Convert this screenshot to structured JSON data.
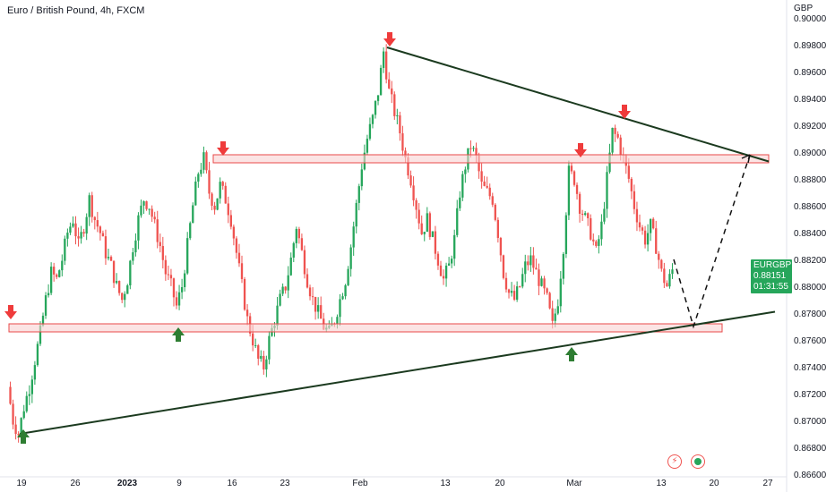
{
  "header": {
    "symbol_title": "Euro / British Pound, 4h, FXCM",
    "currency": "GBP"
  },
  "price_tag": {
    "symbol": "EURGBP",
    "price": "0.88151",
    "countdown": "01:31:55",
    "color": "#26a65b"
  },
  "icons": {
    "flash": "flash-icon",
    "record": "record-icon"
  },
  "chart_data": {
    "type": "candlestick",
    "symbol": "EURGBP",
    "timeframe": "4h",
    "ylim": [
      0.866,
      0.9
    ],
    "y_ticks": [
      "0.90000",
      "0.89800",
      "0.89600",
      "0.89400",
      "0.89200",
      "0.89000",
      "0.88800",
      "0.88600",
      "0.88400",
      "0.88200",
      "0.88000",
      "0.87800",
      "0.87600",
      "0.87400",
      "0.87200",
      "0.87000",
      "0.86800",
      "0.86600"
    ],
    "x_ticks": [
      {
        "label": "19",
        "bold": false
      },
      {
        "label": "26",
        "bold": false
      },
      {
        "label": "2023",
        "bold": true
      },
      {
        "label": "9",
        "bold": false
      },
      {
        "label": "16",
        "bold": false
      },
      {
        "label": "23",
        "bold": false
      },
      {
        "label": "Feb",
        "bold": false
      },
      {
        "label": "13",
        "bold": false
      },
      {
        "label": "20",
        "bold": false
      },
      {
        "label": "Mar",
        "bold": false
      },
      {
        "label": "13",
        "bold": false
      },
      {
        "label": "20",
        "bold": false
      },
      {
        "label": "27",
        "bold": false
      }
    ],
    "price_path": [
      [
        0,
        0.8725
      ],
      [
        2,
        0.87
      ],
      [
        4,
        0.869
      ],
      [
        6,
        0.871
      ],
      [
        8,
        0.8725
      ],
      [
        10,
        0.8745
      ],
      [
        12,
        0.8765
      ],
      [
        14,
        0.879
      ],
      [
        16,
        0.881
      ],
      [
        18,
        0.8805
      ],
      [
        20,
        0.882
      ],
      [
        22,
        0.884
      ],
      [
        24,
        0.885
      ],
      [
        26,
        0.883
      ],
      [
        28,
        0.8845
      ],
      [
        30,
        0.8865
      ],
      [
        32,
        0.885
      ],
      [
        34,
        0.884
      ],
      [
        36,
        0.8825
      ],
      [
        38,
        0.8815
      ],
      [
        40,
        0.88
      ],
      [
        42,
        0.879
      ],
      [
        44,
        0.8805
      ],
      [
        46,
        0.883
      ],
      [
        48,
        0.885
      ],
      [
        50,
        0.8865
      ],
      [
        52,
        0.886
      ],
      [
        54,
        0.8845
      ],
      [
        56,
        0.883
      ],
      [
        58,
        0.881
      ],
      [
        60,
        0.88
      ],
      [
        62,
        0.8785
      ],
      [
        64,
        0.88
      ],
      [
        66,
        0.883
      ],
      [
        68,
        0.886
      ],
      [
        70,
        0.8885
      ],
      [
        72,
        0.8895
      ],
      [
        74,
        0.887
      ],
      [
        76,
        0.886
      ],
      [
        78,
        0.8875
      ],
      [
        80,
        0.8865
      ],
      [
        82,
        0.885
      ],
      [
        84,
        0.8825
      ],
      [
        86,
        0.88
      ],
      [
        88,
        0.8775
      ],
      [
        90,
        0.876
      ],
      [
        92,
        0.8745
      ],
      [
        94,
        0.874
      ],
      [
        96,
        0.876
      ],
      [
        98,
        0.8775
      ],
      [
        100,
        0.879
      ],
      [
        102,
        0.88
      ],
      [
        104,
        0.882
      ],
      [
        106,
        0.8845
      ],
      [
        108,
        0.8825
      ],
      [
        110,
        0.8805
      ],
      [
        112,
        0.879
      ],
      [
        114,
        0.878
      ],
      [
        116,
        0.877
      ],
      [
        118,
        0.8765
      ],
      [
        120,
        0.8775
      ],
      [
        122,
        0.879
      ],
      [
        124,
        0.8805
      ],
      [
        126,
        0.883
      ],
      [
        128,
        0.886
      ],
      [
        130,
        0.889
      ],
      [
        132,
        0.891
      ],
      [
        134,
        0.8925
      ],
      [
        136,
        0.8945
      ],
      [
        138,
        0.8975
      ],
      [
        140,
        0.8945
      ],
      [
        142,
        0.893
      ],
      [
        144,
        0.8915
      ],
      [
        146,
        0.8895
      ],
      [
        148,
        0.888
      ],
      [
        150,
        0.886
      ],
      [
        152,
        0.884
      ],
      [
        154,
        0.885
      ],
      [
        156,
        0.8835
      ],
      [
        158,
        0.882
      ],
      [
        160,
        0.8805
      ],
      [
        162,
        0.8815
      ],
      [
        164,
        0.8835
      ],
      [
        166,
        0.887
      ],
      [
        168,
        0.889
      ],
      [
        170,
        0.8905
      ],
      [
        172,
        0.8895
      ],
      [
        174,
        0.8875
      ],
      [
        176,
        0.887
      ],
      [
        178,
        0.8865
      ],
      [
        180,
        0.884
      ],
      [
        182,
        0.881
      ],
      [
        184,
        0.8795
      ],
      [
        186,
        0.879
      ],
      [
        188,
        0.88
      ],
      [
        190,
        0.8815
      ],
      [
        192,
        0.882
      ],
      [
        194,
        0.881
      ],
      [
        196,
        0.88
      ],
      [
        198,
        0.879
      ],
      [
        200,
        0.877
      ],
      [
        202,
        0.879
      ],
      [
        204,
        0.883
      ],
      [
        206,
        0.8885
      ],
      [
        208,
        0.888
      ],
      [
        210,
        0.886
      ],
      [
        212,
        0.885
      ],
      [
        214,
        0.884
      ],
      [
        216,
        0.8825
      ],
      [
        218,
        0.8845
      ],
      [
        220,
        0.888
      ],
      [
        222,
        0.8915
      ],
      [
        224,
        0.891
      ],
      [
        226,
        0.8895
      ],
      [
        228,
        0.888
      ],
      [
        230,
        0.886
      ],
      [
        232,
        0.8845
      ],
      [
        234,
        0.8835
      ],
      [
        236,
        0.8845
      ],
      [
        238,
        0.883
      ],
      [
        240,
        0.881
      ],
      [
        242,
        0.88
      ],
      [
        244,
        0.8812
      ]
    ],
    "annotations": {
      "resistance_zone": [
        0.8898,
        0.8892
      ],
      "support_zone": [
        0.8772,
        0.8766
      ],
      "upper_trendline": [
        [
          0.8978,
          "Feb 5"
        ],
        [
          0.8895,
          "Mar 24"
        ]
      ],
      "lower_trendline": [
        [
          0.869,
          "Dec 20"
        ],
        [
          0.878,
          "Mar 27"
        ]
      ],
      "projection": [
        0.882,
        0.877,
        0.89
      ]
    },
    "colors": {
      "up": "#26a65b",
      "down": "#ef5350",
      "trendline": "#1b3a1f",
      "zone_fill": "#f9d2d2",
      "zone_border": "#e84a4a",
      "arrow_down": "#ef3b3b",
      "arrow_up": "#2e7d32"
    }
  }
}
